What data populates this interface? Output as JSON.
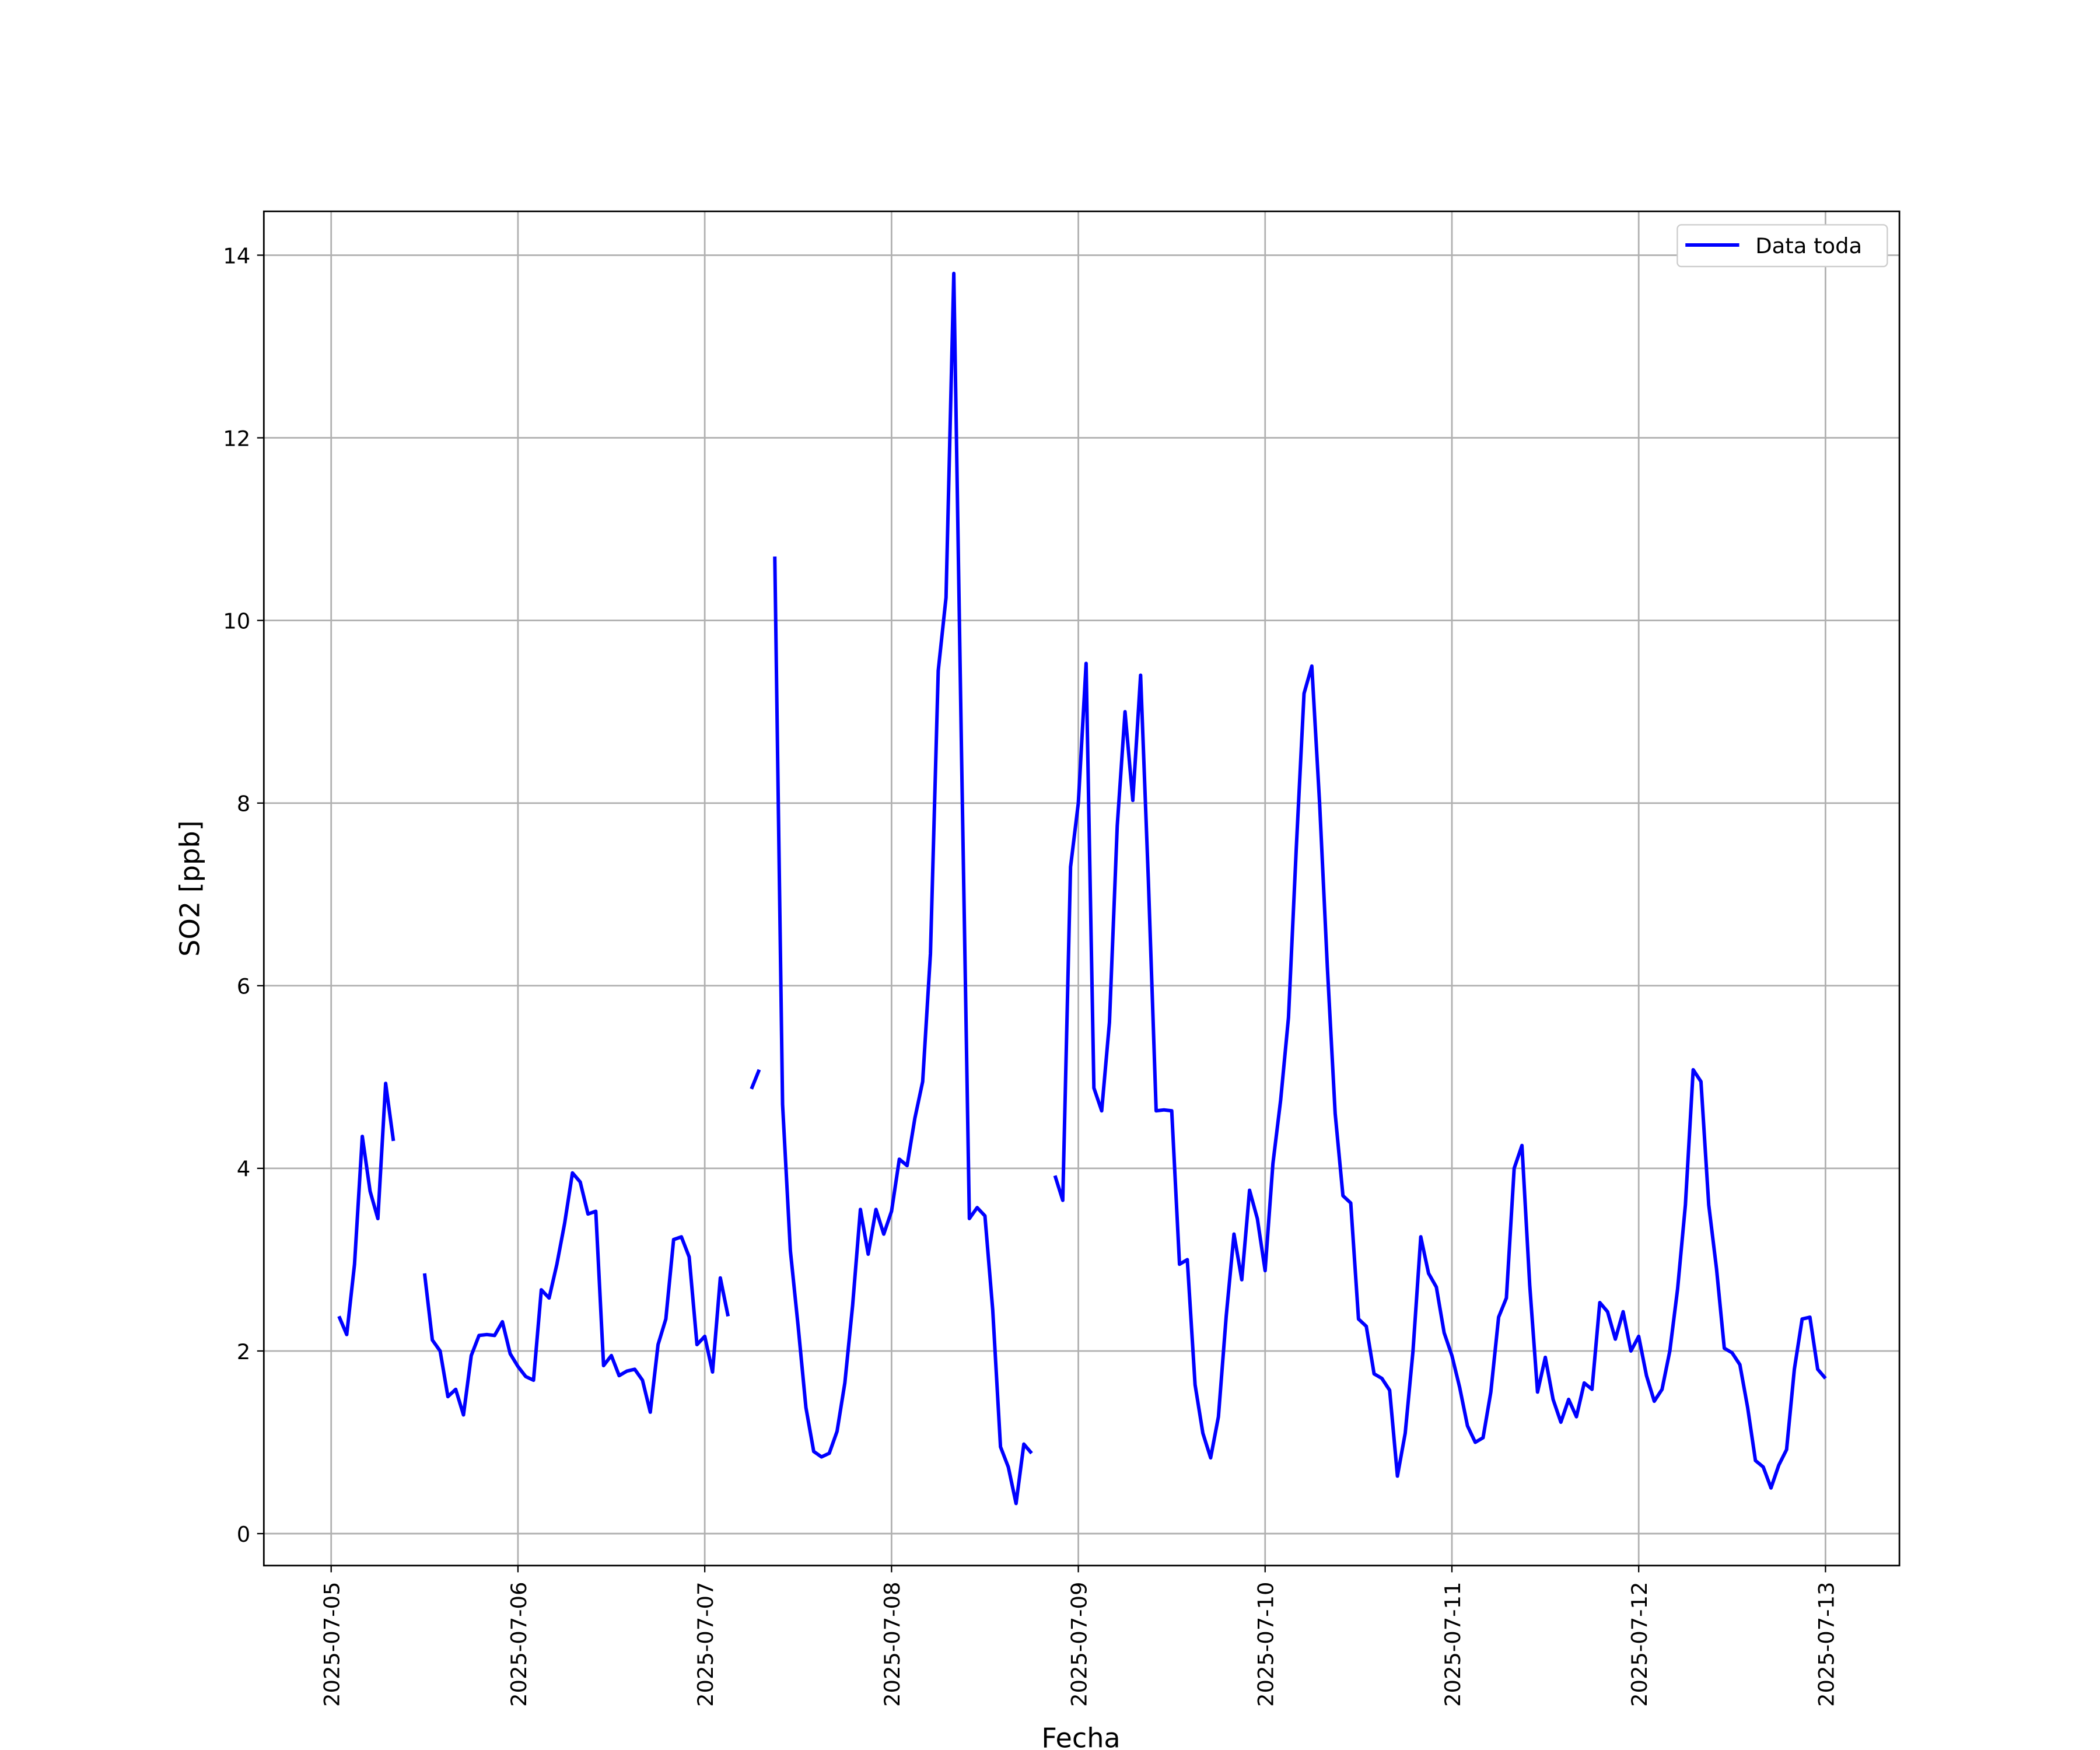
{
  "chart_data": {
    "type": "line",
    "xlabel": "Fecha",
    "ylabel": "SO2 [ppb]",
    "x": [
      "2025-07-05 01:00",
      "2025-07-05 02:00",
      "2025-07-05 03:00",
      "2025-07-05 04:00",
      "2025-07-05 05:00",
      "2025-07-05 06:00",
      "2025-07-05 07:00",
      "2025-07-05 08:00",
      "2025-07-05 09:00",
      "2025-07-05 10:00",
      "2025-07-05 11:00",
      "2025-07-05 12:00",
      "2025-07-05 13:00",
      "2025-07-05 14:00",
      "2025-07-05 15:00",
      "2025-07-05 16:00",
      "2025-07-05 17:00",
      "2025-07-05 18:00",
      "2025-07-05 19:00",
      "2025-07-05 20:00",
      "2025-07-05 21:00",
      "2025-07-05 22:00",
      "2025-07-05 23:00",
      "2025-07-06 00:00",
      "2025-07-06 01:00",
      "2025-07-06 02:00",
      "2025-07-06 03:00",
      "2025-07-06 04:00",
      "2025-07-06 05:00",
      "2025-07-06 06:00",
      "2025-07-06 07:00",
      "2025-07-06 08:00",
      "2025-07-06 09:00",
      "2025-07-06 10:00",
      "2025-07-06 11:00",
      "2025-07-06 12:00",
      "2025-07-06 13:00",
      "2025-07-06 14:00",
      "2025-07-06 15:00",
      "2025-07-06 16:00",
      "2025-07-06 17:00",
      "2025-07-06 18:00",
      "2025-07-06 19:00",
      "2025-07-06 20:00",
      "2025-07-06 21:00",
      "2025-07-06 22:00",
      "2025-07-06 23:00",
      "2025-07-07 00:00",
      "2025-07-07 01:00",
      "2025-07-07 02:00",
      "2025-07-07 03:00",
      "2025-07-07 04:00",
      "2025-07-07 05:00",
      "2025-07-07 06:00",
      "2025-07-07 07:00",
      "2025-07-07 08:00",
      "2025-07-07 09:00",
      "2025-07-07 10:00",
      "2025-07-07 11:00",
      "2025-07-07 12:00",
      "2025-07-07 13:00",
      "2025-07-07 14:00",
      "2025-07-07 15:00",
      "2025-07-07 16:00",
      "2025-07-07 17:00",
      "2025-07-07 18:00",
      "2025-07-07 19:00",
      "2025-07-07 20:00",
      "2025-07-07 21:00",
      "2025-07-07 22:00",
      "2025-07-07 23:00",
      "2025-07-08 00:00",
      "2025-07-08 01:00",
      "2025-07-08 02:00",
      "2025-07-08 03:00",
      "2025-07-08 04:00",
      "2025-07-08 05:00",
      "2025-07-08 06:00",
      "2025-07-08 07:00",
      "2025-07-08 08:00",
      "2025-07-08 09:00",
      "2025-07-08 10:00",
      "2025-07-08 11:00",
      "2025-07-08 12:00",
      "2025-07-08 13:00",
      "2025-07-08 14:00",
      "2025-07-08 15:00",
      "2025-07-08 16:00",
      "2025-07-08 17:00",
      "2025-07-08 18:00",
      "2025-07-08 19:00",
      "2025-07-08 20:00",
      "2025-07-08 21:00",
      "2025-07-08 22:00",
      "2025-07-08 23:00",
      "2025-07-09 00:00",
      "2025-07-09 01:00",
      "2025-07-09 02:00",
      "2025-07-09 03:00",
      "2025-07-09 04:00",
      "2025-07-09 05:00",
      "2025-07-09 06:00",
      "2025-07-09 07:00",
      "2025-07-09 08:00",
      "2025-07-09 09:00",
      "2025-07-09 10:00",
      "2025-07-09 11:00",
      "2025-07-09 12:00",
      "2025-07-09 13:00",
      "2025-07-09 14:00",
      "2025-07-09 15:00",
      "2025-07-09 16:00",
      "2025-07-09 17:00",
      "2025-07-09 18:00",
      "2025-07-09 19:00",
      "2025-07-09 20:00",
      "2025-07-09 21:00",
      "2025-07-09 22:00",
      "2025-07-09 23:00",
      "2025-07-10 00:00",
      "2025-07-10 01:00",
      "2025-07-10 02:00",
      "2025-07-10 03:00",
      "2025-07-10 04:00",
      "2025-07-10 05:00",
      "2025-07-10 06:00",
      "2025-07-10 07:00",
      "2025-07-10 08:00",
      "2025-07-10 09:00",
      "2025-07-10 10:00",
      "2025-07-10 11:00",
      "2025-07-10 12:00",
      "2025-07-10 13:00",
      "2025-07-10 14:00",
      "2025-07-10 15:00",
      "2025-07-10 16:00",
      "2025-07-10 17:00",
      "2025-07-10 18:00",
      "2025-07-10 19:00",
      "2025-07-10 20:00",
      "2025-07-10 21:00",
      "2025-07-10 22:00",
      "2025-07-10 23:00",
      "2025-07-11 00:00",
      "2025-07-11 01:00",
      "2025-07-11 02:00",
      "2025-07-11 03:00",
      "2025-07-11 04:00",
      "2025-07-11 05:00",
      "2025-07-11 06:00",
      "2025-07-11 07:00",
      "2025-07-11 08:00",
      "2025-07-11 09:00",
      "2025-07-11 10:00",
      "2025-07-11 11:00",
      "2025-07-11 12:00",
      "2025-07-11 13:00",
      "2025-07-11 14:00",
      "2025-07-11 15:00",
      "2025-07-11 16:00",
      "2025-07-11 17:00",
      "2025-07-11 18:00",
      "2025-07-11 19:00",
      "2025-07-11 20:00",
      "2025-07-11 21:00",
      "2025-07-11 22:00",
      "2025-07-11 23:00",
      "2025-07-12 00:00",
      "2025-07-12 01:00",
      "2025-07-12 02:00",
      "2025-07-12 03:00",
      "2025-07-12 04:00",
      "2025-07-12 05:00",
      "2025-07-12 06:00",
      "2025-07-12 07:00",
      "2025-07-12 08:00",
      "2025-07-12 09:00",
      "2025-07-12 10:00",
      "2025-07-12 11:00",
      "2025-07-12 12:00",
      "2025-07-12 13:00",
      "2025-07-12 14:00",
      "2025-07-12 15:00",
      "2025-07-12 16:00",
      "2025-07-12 17:00",
      "2025-07-12 18:00",
      "2025-07-12 19:00",
      "2025-07-12 20:00",
      "2025-07-12 21:00",
      "2025-07-12 22:00",
      "2025-07-12 23:00",
      "2025-07-13 00:00"
    ],
    "series": [
      {
        "name": "Data toda",
        "color": "#0000ff",
        "values": [
          2.38,
          2.18,
          2.95,
          4.35,
          3.75,
          3.45,
          4.93,
          4.3,
          null,
          null,
          null,
          2.85,
          2.12,
          2.0,
          1.5,
          1.58,
          1.3,
          1.95,
          2.17,
          2.18,
          2.17,
          2.32,
          1.97,
          1.83,
          1.72,
          1.68,
          2.67,
          2.58,
          2.95,
          3.4,
          3.95,
          3.85,
          3.5,
          3.53,
          1.84,
          1.95,
          1.73,
          1.78,
          1.8,
          1.68,
          1.33,
          2.07,
          2.35,
          3.22,
          3.25,
          3.03,
          2.07,
          2.16,
          1.77,
          2.8,
          2.38,
          null,
          null,
          4.87,
          5.08,
          null,
          10.7,
          4.7,
          3.1,
          2.27,
          1.38,
          0.9,
          0.84,
          0.88,
          1.12,
          1.65,
          2.5,
          3.55,
          3.06,
          3.55,
          3.28,
          3.53,
          4.1,
          4.03,
          4.55,
          4.95,
          6.35,
          9.45,
          10.25,
          13.8,
          8.5,
          3.45,
          3.57,
          3.48,
          2.45,
          0.95,
          0.73,
          0.33,
          0.98,
          0.88,
          null,
          null,
          3.92,
          3.65,
          7.3,
          8.0,
          9.53,
          4.88,
          4.63,
          5.6,
          7.75,
          9.0,
          8.03,
          9.4,
          7.15,
          4.63,
          4.64,
          4.63,
          2.95,
          3.0,
          1.63,
          1.1,
          0.83,
          1.28,
          2.38,
          3.28,
          2.78,
          3.76,
          3.45,
          2.88,
          4.05,
          4.75,
          5.65,
          7.5,
          9.2,
          9.5,
          8.0,
          6.2,
          4.6,
          3.7,
          3.62,
          2.35,
          2.27,
          1.75,
          1.7,
          1.57,
          0.63,
          1.1,
          2.0,
          3.25,
          2.85,
          2.7,
          2.2,
          1.95,
          1.6,
          1.18,
          1.0,
          1.05,
          1.55,
          2.37,
          2.58,
          4.0,
          4.25,
          2.72,
          1.55,
          1.93,
          1.47,
          1.22,
          1.47,
          1.28,
          1.65,
          1.58,
          2.53,
          2.43,
          2.13,
          2.43,
          2.0,
          2.16,
          1.73,
          1.45,
          1.58,
          2.0,
          2.68,
          3.6,
          5.08,
          4.95,
          3.6,
          2.9,
          2.03,
          1.98,
          1.85,
          1.38,
          0.8,
          0.73,
          0.5,
          0.75,
          0.92,
          1.8,
          2.35,
          2.37,
          1.8,
          1.7
        ]
      }
    ],
    "xlim": [
      "2025-07-04 15:21",
      "2025-07-13 09:30"
    ],
    "xticks": [
      "2025-07-05",
      "2025-07-06",
      "2025-07-07",
      "2025-07-08",
      "2025-07-09",
      "2025-07-10",
      "2025-07-11",
      "2025-07-12",
      "2025-07-13"
    ],
    "ylim": [
      -0.35,
      14.48
    ],
    "yticks": [
      0,
      2,
      4,
      6,
      8,
      10,
      12,
      14
    ],
    "grid": true,
    "legend": "upper right"
  }
}
